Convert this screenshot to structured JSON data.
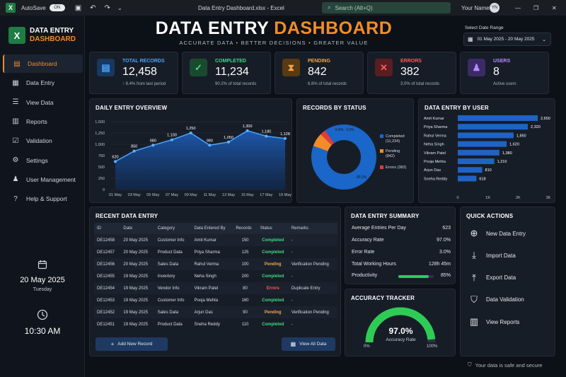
{
  "titlebar": {
    "autosave": "AutoSave",
    "toggle": "ON",
    "filename": "Data Entry Dashboard.xlsx - Excel",
    "search": "Search (Alt+Q)",
    "user": "Your Name",
    "initials": "YN"
  },
  "brand": {
    "line1": "DATA ENTRY",
    "line2": "DASHBOARD"
  },
  "nav": [
    {
      "label": "Dashboard",
      "icon": "dashboard-icon",
      "active": true
    },
    {
      "label": "Data Entry",
      "icon": "data-entry-icon"
    },
    {
      "label": "View Data",
      "icon": "view-data-icon"
    },
    {
      "label": "Reports",
      "icon": "reports-icon"
    },
    {
      "label": "Validation",
      "icon": "validation-icon"
    },
    {
      "label": "Settings",
      "icon": "settings-icon"
    },
    {
      "label": "User Management",
      "icon": "user-management-icon"
    },
    {
      "label": "Help & Support",
      "icon": "help-icon"
    }
  ],
  "sidebar_date": {
    "date": "20 May 2025",
    "day": "Tuesday",
    "time": "10:30 AM"
  },
  "header": {
    "title_part1": "DATA ENTRY",
    "title_part2": "DASHBOARD",
    "tag1": "ACCURATE DATA",
    "tag2": "BETTER DECISIONS",
    "tag3": "GREATER VALUE",
    "range_label": "Select Date Range",
    "range_value": "01 May 2025 - 20 May 2025"
  },
  "kpis": [
    {
      "label": "TOTAL RECORDS",
      "value": "12,458",
      "sub": "↑ 8.4% from last period",
      "color": "#4aa3ff",
      "bg": "#17385f"
    },
    {
      "label": "COMPLETED",
      "value": "11,234",
      "sub": "90.2% of total records",
      "color": "#3ddc84",
      "bg": "#1a4a2e"
    },
    {
      "label": "PENDING",
      "value": "842",
      "sub": "6.8% of total records",
      "color": "#f2a54a",
      "bg": "#5a3a12"
    },
    {
      "label": "ERRORS",
      "value": "382",
      "sub": "3.0% of total records",
      "color": "#ff5a5a",
      "bg": "#5a1d22"
    },
    {
      "label": "USERS",
      "value": "8",
      "sub": "Active users",
      "color": "#b58cff",
      "bg": "#3c2a66"
    }
  ],
  "daily": {
    "title": "DAILY ENTRY OVERVIEW"
  },
  "status": {
    "title": "RECORDS BY STATUS"
  },
  "byuser": {
    "title": "DATA ENTRY BY USER"
  },
  "chart_data": [
    {
      "type": "area",
      "title": "DAILY ENTRY OVERVIEW",
      "x": [
        "01 May",
        "03 May",
        "05 May",
        "07 May",
        "09 May",
        "11 May",
        "13 May",
        "15 May",
        "17 May",
        "19 May"
      ],
      "values": [
        620,
        850,
        980,
        1100,
        1250,
        980,
        1050,
        1300,
        1180,
        1128
      ],
      "yticks": [
        "0",
        "250",
        "500",
        "750",
        "1,000",
        "1,250",
        "1,500"
      ],
      "ylim": [
        0,
        1500
      ]
    },
    {
      "type": "pie",
      "title": "RECORDS BY STATUS",
      "slices": [
        {
          "name": "Completed",
          "count": "(11,234)",
          "pct": "90.2%",
          "color": "#1a66c9",
          "value": 90.2
        },
        {
          "name": "Pending",
          "count": "(842)",
          "pct": "6.8%",
          "color": "#f28c28",
          "value": 6.8
        },
        {
          "name": "Errors (382)",
          "count": "",
          "pct": "3.0%",
          "color": "#e03c3c",
          "value": 3.0
        }
      ]
    },
    {
      "type": "bar",
      "title": "DATA ENTRY BY USER",
      "categories": [
        "Amit Kumar",
        "Priya Sharma",
        "Rahul Verma",
        "Neha Singh",
        "Vikram Patel",
        "Pooja Mehta",
        "Arjun Das",
        "Sneha Reddy"
      ],
      "values": [
        2650,
        2320,
        1850,
        1620,
        1380,
        1210,
        810,
        618
      ],
      "labels": [
        "2,650",
        "2,320",
        "1,850",
        "1,620",
        "1,380",
        "1,210",
        "810",
        "618"
      ],
      "xticks": [
        "0",
        "1K",
        "2K",
        "3K"
      ],
      "xlim": [
        0,
        3000
      ]
    }
  ],
  "recent": {
    "title": "RECENT DATA ENTRY",
    "columns": [
      "ID",
      "Date",
      "Category",
      "Data Entered By",
      "Records",
      "Status",
      "Remarks"
    ],
    "rows": [
      [
        "DE12458",
        "20 May 2025",
        "Customer Info",
        "Amit Kumar",
        "150",
        "Completed",
        "-"
      ],
      [
        "DE12457",
        "20 May 2025",
        "Product Data",
        "Priya Sharma",
        "125",
        "Completed",
        "-"
      ],
      [
        "DE12456",
        "20 May 2025",
        "Sales Data",
        "Rahul Verma",
        "100",
        "Pending",
        "Verification Pending"
      ],
      [
        "DE12455",
        "19 May 2025",
        "Inventory",
        "Neha Singh",
        "200",
        "Completed",
        "-"
      ],
      [
        "DE12454",
        "19 May 2025",
        "Vendor Info",
        "Vikram Patel",
        "80",
        "Errors",
        "Duplicate Entry"
      ],
      [
        "DE12453",
        "19 May 2025",
        "Customer Info",
        "Pooja Mehta",
        "160",
        "Completed",
        "-"
      ],
      [
        "DE12452",
        "19 May 2025",
        "Sales Data",
        "Arjun Das",
        "90",
        "Pending",
        "Verification Pending"
      ],
      [
        "DE12451",
        "19 May 2025",
        "Product Data",
        "Sneha Reddy",
        "110",
        "Completed",
        "-"
      ]
    ],
    "add_btn": "Add New Record",
    "view_btn": "View All Data"
  },
  "status_colors": {
    "Completed": "#3ddc84",
    "Pending": "#f2a54a",
    "Errors": "#ff5a5a"
  },
  "summary": {
    "title": "DATA ENTRY SUMMARY",
    "rows": [
      [
        "Average Entries Per Day",
        "623"
      ],
      [
        "Accuracy Rate",
        "97.0%"
      ],
      [
        "Error Rate",
        "3.0%"
      ],
      [
        "Total Working Hours",
        "128h 45m"
      ]
    ],
    "prod_label": "Productivity",
    "prod_value": "85%",
    "prod_fraction": 0.85
  },
  "accuracy": {
    "title": "ACCURACY TRACKER",
    "value": "97.0%",
    "label": "Accuracy Rate",
    "min": "0%",
    "max": "100%",
    "fraction": 0.97
  },
  "quick": {
    "title": "QUICK ACTIONS",
    "items": [
      {
        "label": "New Data Entry",
        "icon": "plus-circle-icon"
      },
      {
        "label": "Import Data",
        "icon": "import-icon"
      },
      {
        "label": "Export Data",
        "icon": "export-icon"
      },
      {
        "label": "Data Validation",
        "icon": "shield-check-icon"
      },
      {
        "label": "View Reports",
        "icon": "bar-chart-icon"
      }
    ]
  },
  "footer": {
    "secure": "Your data is safe and secure"
  }
}
